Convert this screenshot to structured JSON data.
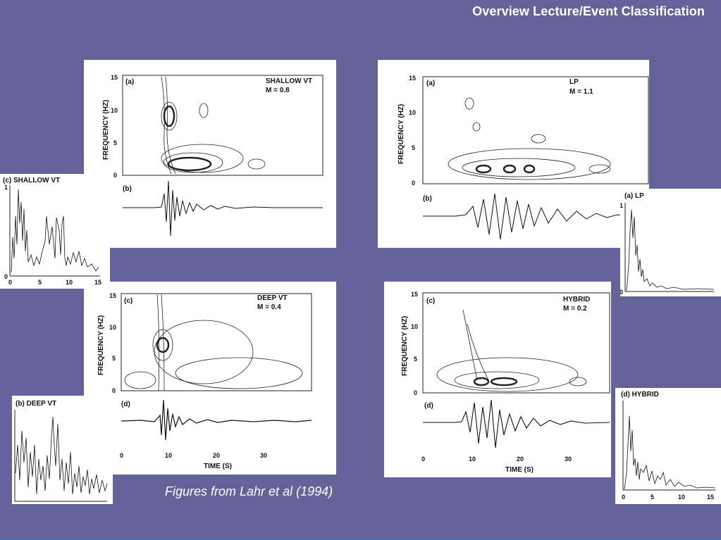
{
  "slide": {
    "title": "Overview Lecture/Event Classification",
    "caption": "Figures from Lahr et al (1994)"
  },
  "spectrograms": [
    {
      "id": "shallow",
      "panel_label": "(a)",
      "event": "SHALLOW VT",
      "magnitude": "M = 0.8",
      "wave_label": "(b)"
    },
    {
      "id": "lp",
      "panel_label": "(a)",
      "event": "LP",
      "magnitude": "M = 1.1",
      "wave_label": "(b)"
    },
    {
      "id": "deep",
      "panel_label": "(c)",
      "event": "DEEP VT",
      "magnitude": "M = 0.4",
      "wave_label": "(d)"
    },
    {
      "id": "hybrid",
      "panel_label": "(c)",
      "event": "HYBRID",
      "magnitude": "M = 0.2",
      "wave_label": "(d)"
    }
  ],
  "axes": {
    "freq_label": "FREQUENCY (HZ)",
    "freq_ticks": [
      "15",
      "10",
      "5",
      "0"
    ],
    "time_label": "TIME (S)",
    "time_ticks": [
      "0",
      "10",
      "20",
      "30"
    ]
  },
  "small_plots": [
    {
      "id": "shallow-small",
      "label": "(c) SHALLOW VT",
      "y_ticks": [
        "1",
        "0"
      ],
      "x_ticks": [
        "0",
        "5",
        "10",
        "15"
      ]
    },
    {
      "id": "lp-small",
      "label": "(a) LP",
      "y_ticks": [
        "1",
        "0"
      ]
    },
    {
      "id": "deep-small",
      "label": "(b) DEEP VT"
    },
    {
      "id": "hybrid-small",
      "label": "(d) HYBRID",
      "x_ticks": [
        "0",
        "5",
        "10",
        "15"
      ]
    }
  ]
}
